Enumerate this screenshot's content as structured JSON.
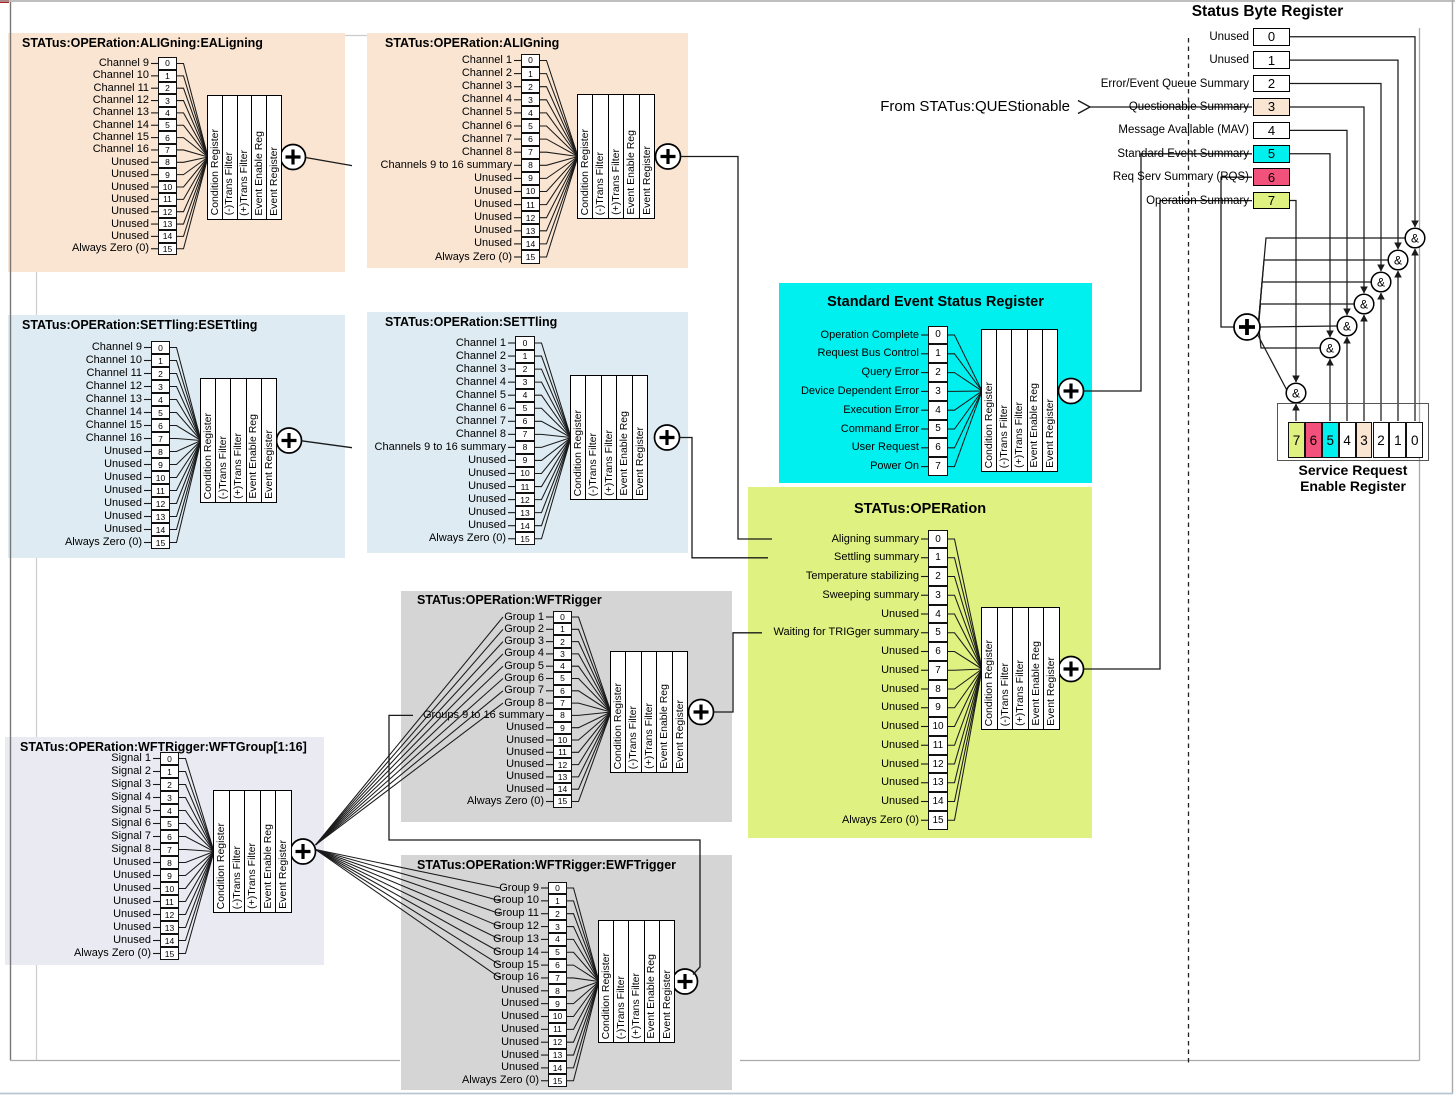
{
  "colors": {
    "peach": "#fae5d2",
    "blue": "#deebf2",
    "gray": "#d5d5d5",
    "lavender": "#eaeaf3",
    "cyan": "#00f0f0",
    "yellow": "#dff181",
    "pink": "#f2517c",
    "white": "#ffffff",
    "line": "#1a1a1a",
    "frame_gray": "#aaaaaa",
    "frame_dark": "#777777",
    "frame_blue": "#b8c6d2",
    "gap_line": "#cccccc",
    "red_tick": "#aa2222"
  },
  "register_columns": [
    "Condition Register",
    "(-)Trans Filter",
    "(+)Trans Filter",
    "Event Enable Reg",
    "Event Register"
  ],
  "bit_numbers_16": [
    "0",
    "1",
    "2",
    "3",
    "4",
    "5",
    "6",
    "7",
    "8",
    "9",
    "10",
    "11",
    "12",
    "13",
    "14",
    "15"
  ],
  "bit_numbers_8": [
    "0",
    "1",
    "2",
    "3",
    "4",
    "5",
    "6",
    "7"
  ],
  "plus_symbol": "+",
  "and_symbol": "&",
  "annotations": {
    "from_questionable": "From STATus:QUEStionable"
  },
  "blocks": [
    {
      "id": "ealigning",
      "title": "STATus:OPERation:ALIGning:EALigning",
      "labels": [
        "Channel 9",
        "Channel 10",
        "Channel 11",
        "Channel 12",
        "Channel 13",
        "Channel 14",
        "Channel 15",
        "Channel 16",
        "Unused",
        "Unused",
        "Unused",
        "Unused",
        "Unused",
        "Unused",
        "Unused",
        "Always Zero (0)"
      ]
    },
    {
      "id": "aligning",
      "title": "STATus:OPERation:ALIGning",
      "labels": [
        "Channel 1",
        "Channel 2",
        "Channel 3",
        "Channel 4",
        "Channel 5",
        "Channel 6",
        "Channel 7",
        "Channel 8",
        "Channels 9 to 16 summary",
        "Unused",
        "Unused",
        "Unused",
        "Unused",
        "Unused",
        "Unused",
        "Always Zero (0)"
      ]
    },
    {
      "id": "esettling",
      "title": "STATus:OPERation:SETTling:ESETtling",
      "labels": [
        "Channel 9",
        "Channel 10",
        "Channel 11",
        "Channel 12",
        "Channel 13",
        "Channel 14",
        "Channel 15",
        "Channel 16",
        "Unused",
        "Unused",
        "Unused",
        "Unused",
        "Unused",
        "Unused",
        "Unused",
        "Always Zero (0)"
      ]
    },
    {
      "id": "settling",
      "title": "STATus:OPERation:SETTling",
      "labels": [
        "Channel 1",
        "Channel 2",
        "Channel 3",
        "Channel 4",
        "Channel 5",
        "Channel 6",
        "Channel 7",
        "Channel 8",
        "Channels 9 to 16 summary",
        "Unused",
        "Unused",
        "Unused",
        "Unused",
        "Unused",
        "Unused",
        "Always Zero (0)"
      ]
    },
    {
      "id": "wftrigger",
      "title": "STATus:OPERation:WFTRigger",
      "labels": [
        "Group 1",
        "Group 2",
        "Group 3",
        "Group 4",
        "Group 5",
        "Group 6",
        "Group 7",
        "Group 8",
        "Groups 9 to 16 summary",
        "Unused",
        "Unused",
        "Unused",
        "Unused",
        "Unused",
        "Unused",
        "Always Zero (0)"
      ]
    },
    {
      "id": "wftgroup",
      "title": "STATus:OPERation:WFTRigger:WFTGroup[1:16]",
      "labels": [
        "Signal 1",
        "Signal 2",
        "Signal 3",
        "Signal 4",
        "Signal 5",
        "Signal 6",
        "Signal 7",
        "Signal 8",
        "Unused",
        "Unused",
        "Unused",
        "Unused",
        "Unused",
        "Unused",
        "Unused",
        "Always Zero (0)"
      ]
    },
    {
      "id": "ewftrigger",
      "title": "STATus:OPERation:WFTRigger:EWFTrigger",
      "labels": [
        "Group 9",
        "Group 10",
        "Group 11",
        "Group 12",
        "Group 13",
        "Group 14",
        "Group 15",
        "Group 16",
        "Unused",
        "Unused",
        "Unused",
        "Unused",
        "Unused",
        "Unused",
        "Unused",
        "Always Zero (0)"
      ]
    },
    {
      "id": "sesr",
      "title": "Standard Event Status Register",
      "labels": [
        "Operation Complete",
        "Request Bus Control",
        "Query Error",
        "Device Dependent Error",
        "Execution Error",
        "Command Error",
        "User Request",
        "Power On"
      ]
    },
    {
      "id": "operation",
      "title": "STATus:OPERation",
      "labels": [
        "Aligning summary",
        "Settling summary",
        "Temperature stabilizing",
        "Sweeping summary",
        "Unused",
        "Waiting for TRIGger summary",
        "Unused",
        "Unused",
        "Unused",
        "Unused",
        "Unused",
        "Unused",
        "Unused",
        "Unused",
        "Unused",
        "Always Zero (0)"
      ]
    }
  ],
  "status_byte": {
    "title": "Status Byte Register",
    "bits": [
      {
        "num": "0",
        "label": "Unused",
        "color": "white"
      },
      {
        "num": "1",
        "label": "Unused",
        "color": "white"
      },
      {
        "num": "2",
        "label": "Error/Event Queue Summary",
        "color": "white"
      },
      {
        "num": "3",
        "label": "Questionable Summary",
        "color": "peach"
      },
      {
        "num": "4",
        "label": "Message Available (MAV)",
        "color": "white"
      },
      {
        "num": "5",
        "label": "Standard Event Summary",
        "color": "cyan"
      },
      {
        "num": "6",
        "label": "Req Serv Summary (RQS)",
        "color": "pink"
      },
      {
        "num": "7",
        "label": "Operation Summary",
        "color": "yellow"
      }
    ]
  },
  "service_request": {
    "title_line1": "Service Request",
    "title_line2": "Enable Register",
    "cells": [
      {
        "num": "7",
        "color": "yellow"
      },
      {
        "num": "6",
        "color": "pink"
      },
      {
        "num": "5",
        "color": "cyan"
      },
      {
        "num": "4",
        "color": "white"
      },
      {
        "num": "3",
        "color": "peach"
      },
      {
        "num": "2",
        "color": "white"
      },
      {
        "num": "1",
        "color": "white"
      },
      {
        "num": "0",
        "color": "white"
      }
    ]
  }
}
